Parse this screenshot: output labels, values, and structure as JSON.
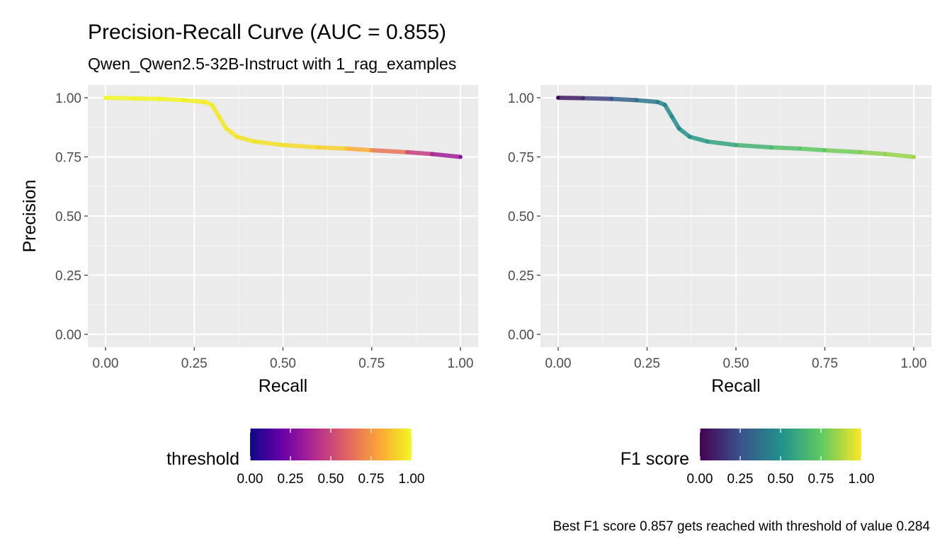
{
  "title": "Precision-Recall Curve (AUC = 0.855)",
  "subtitle": "Qwen_Qwen2.5-32B-Instruct with 1_rag_examples",
  "caption": "Best F1 score 0.857 gets reached with threshold of value 0.284",
  "chart_data": [
    {
      "type": "line",
      "panel": "left",
      "xlabel": "Recall",
      "ylabel": "Precision",
      "xlim": [
        0,
        1
      ],
      "ylim": [
        0,
        1
      ],
      "x_ticks": [
        "0.00",
        "0.25",
        "0.50",
        "0.75",
        "1.00"
      ],
      "y_ticks": [
        "0.00",
        "0.25",
        "0.50",
        "0.75",
        "1.00"
      ],
      "grid": true,
      "color_by": "threshold",
      "colormap": "plasma",
      "legend": {
        "title": "threshold",
        "position": "bottom",
        "ticks": [
          "0.00",
          "0.25",
          "0.50",
          "0.75",
          "1.00"
        ],
        "colors": [
          "#0d0887",
          "#6a00a8",
          "#b12a90",
          "#e16462",
          "#fca636",
          "#f0f921"
        ]
      },
      "points": [
        {
          "recall": 0.0,
          "precision": 1.0,
          "threshold": 1.0
        },
        {
          "recall": 0.08,
          "precision": 0.997,
          "threshold": 0.99
        },
        {
          "recall": 0.15,
          "precision": 0.995,
          "threshold": 0.99
        },
        {
          "recall": 0.22,
          "precision": 0.99,
          "threshold": 0.98
        },
        {
          "recall": 0.28,
          "precision": 0.982,
          "threshold": 0.97
        },
        {
          "recall": 0.3,
          "precision": 0.97,
          "threshold": 0.97
        },
        {
          "recall": 0.32,
          "precision": 0.92,
          "threshold": 0.96
        },
        {
          "recall": 0.34,
          "precision": 0.87,
          "threshold": 0.96
        },
        {
          "recall": 0.37,
          "precision": 0.835,
          "threshold": 0.95
        },
        {
          "recall": 0.42,
          "precision": 0.815,
          "threshold": 0.95
        },
        {
          "recall": 0.5,
          "precision": 0.8,
          "threshold": 0.94
        },
        {
          "recall": 0.6,
          "precision": 0.79,
          "threshold": 0.92
        },
        {
          "recall": 0.68,
          "precision": 0.785,
          "threshold": 0.88
        },
        {
          "recall": 0.75,
          "precision": 0.778,
          "threshold": 0.75
        },
        {
          "recall": 0.85,
          "precision": 0.77,
          "threshold": 0.55
        },
        {
          "recall": 0.92,
          "precision": 0.762,
          "threshold": 0.4
        },
        {
          "recall": 1.0,
          "precision": 0.75,
          "threshold": 0.28
        }
      ]
    },
    {
      "type": "line",
      "panel": "right",
      "xlabel": "Recall",
      "ylabel": "",
      "xlim": [
        0,
        1
      ],
      "ylim": [
        0,
        1
      ],
      "x_ticks": [
        "0.00",
        "0.25",
        "0.50",
        "0.75",
        "1.00"
      ],
      "y_ticks": [
        "0.00",
        "0.25",
        "0.50",
        "0.75",
        "1.00"
      ],
      "grid": true,
      "color_by": "F1 score",
      "colormap": "viridis",
      "legend": {
        "title": "F1 score",
        "position": "bottom",
        "ticks": [
          "0.00",
          "0.25",
          "0.50",
          "0.75",
          "1.00"
        ],
        "colors": [
          "#440154",
          "#3b528b",
          "#21918c",
          "#5ec962",
          "#fde725"
        ]
      },
      "points": [
        {
          "recall": 0.0,
          "precision": 1.0,
          "f1": 0.0
        },
        {
          "recall": 0.07,
          "precision": 0.998,
          "f1": 0.13
        },
        {
          "recall": 0.15,
          "precision": 0.995,
          "f1": 0.26
        },
        {
          "recall": 0.22,
          "precision": 0.99,
          "f1": 0.36
        },
        {
          "recall": 0.28,
          "precision": 0.982,
          "f1": 0.44
        },
        {
          "recall": 0.3,
          "precision": 0.97,
          "f1": 0.46
        },
        {
          "recall": 0.32,
          "precision": 0.92,
          "f1": 0.47
        },
        {
          "recall": 0.34,
          "precision": 0.87,
          "f1": 0.49
        },
        {
          "recall": 0.37,
          "precision": 0.835,
          "f1": 0.51
        },
        {
          "recall": 0.42,
          "precision": 0.815,
          "f1": 0.55
        },
        {
          "recall": 0.5,
          "precision": 0.8,
          "f1": 0.62
        },
        {
          "recall": 0.6,
          "precision": 0.79,
          "f1": 0.68
        },
        {
          "recall": 0.68,
          "precision": 0.785,
          "f1": 0.73
        },
        {
          "recall": 0.75,
          "precision": 0.778,
          "f1": 0.76
        },
        {
          "recall": 0.85,
          "precision": 0.77,
          "f1": 0.81
        },
        {
          "recall": 0.92,
          "precision": 0.762,
          "f1": 0.83
        },
        {
          "recall": 1.0,
          "precision": 0.75,
          "f1": 0.857
        }
      ]
    }
  ]
}
